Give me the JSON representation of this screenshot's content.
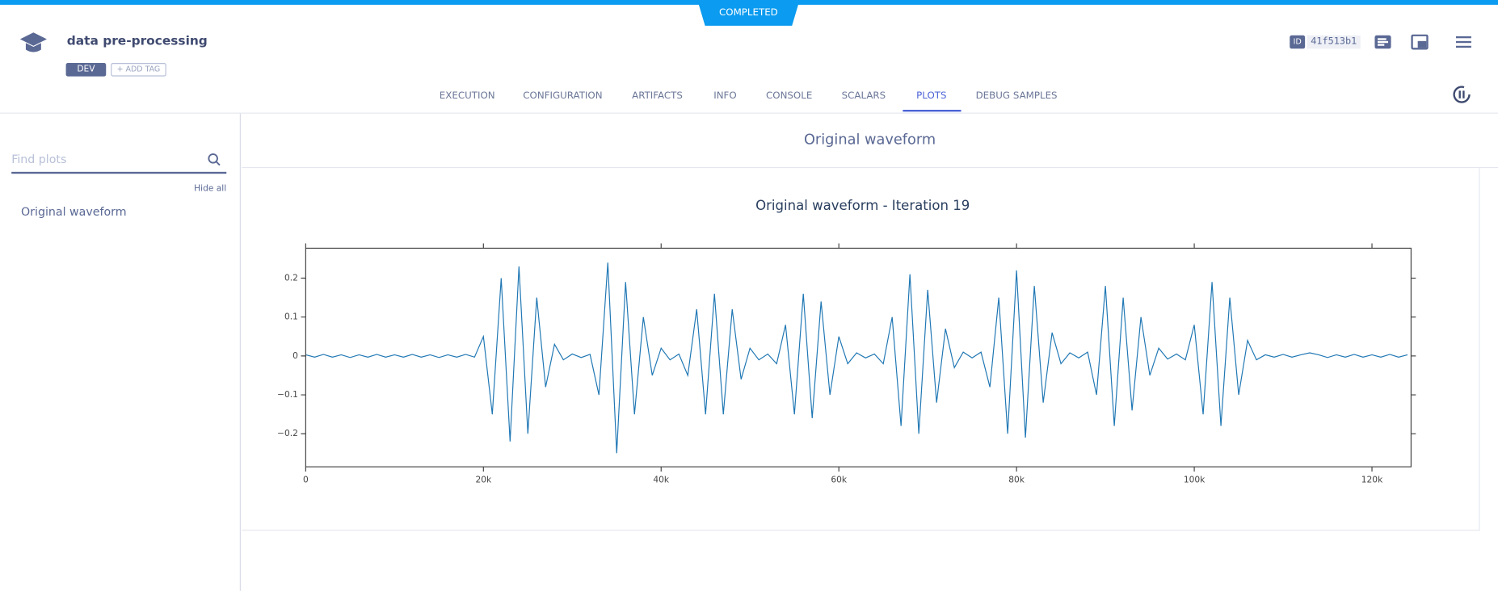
{
  "header": {
    "status": "COMPLETED",
    "title": "data pre-processing",
    "tag": "DEV",
    "add_tag": "+ ADD TAG",
    "id_label": "ID",
    "id": "41f513b1"
  },
  "tabs": [
    "EXECUTION",
    "CONFIGURATION",
    "ARTIFACTS",
    "INFO",
    "CONSOLE",
    "SCALARS",
    "PLOTS",
    "DEBUG SAMPLES"
  ],
  "active_tab": "PLOTS",
  "sidebar": {
    "search_placeholder": "Find plots",
    "hide_all": "Hide all",
    "items": [
      "Original waveform"
    ]
  },
  "panel_title": "Original waveform",
  "chart_data": {
    "type": "line",
    "title": "Original waveform - Iteration 19",
    "color": "#1f77b4",
    "x": [
      0,
      1000,
      2000,
      3000,
      4000,
      5000,
      6000,
      7000,
      8000,
      9000,
      10000,
      11000,
      12000,
      13000,
      14000,
      15000,
      16000,
      17000,
      18000,
      19000,
      20000,
      21000,
      22000,
      23000,
      24000,
      25000,
      26000,
      27000,
      28000,
      29000,
      30000,
      31000,
      32000,
      33000,
      34000,
      35000,
      36000,
      37000,
      38000,
      39000,
      40000,
      41000,
      42000,
      43000,
      44000,
      45000,
      46000,
      47000,
      48000,
      49000,
      50000,
      51000,
      52000,
      53000,
      54000,
      55000,
      56000,
      57000,
      58000,
      59000,
      60000,
      61000,
      62000,
      63000,
      64000,
      65000,
      66000,
      67000,
      68000,
      69000,
      70000,
      71000,
      72000,
      73000,
      74000,
      75000,
      76000,
      77000,
      78000,
      79000,
      80000,
      81000,
      82000,
      83000,
      84000,
      85000,
      86000,
      87000,
      88000,
      89000,
      90000,
      91000,
      92000,
      93000,
      94000,
      95000,
      96000,
      97000,
      98000,
      99000,
      100000,
      101000,
      102000,
      103000,
      104000,
      105000,
      106000,
      107000,
      108000,
      109000,
      110000,
      111000,
      112000,
      113000,
      114000,
      115000,
      116000,
      117000,
      118000,
      119000,
      120000,
      121000,
      122000,
      123000,
      124000
    ],
    "values": [
      0.003,
      -0.003,
      0.004,
      -0.003,
      0.003,
      -0.004,
      0.003,
      -0.003,
      0.004,
      -0.003,
      0.003,
      -0.003,
      0.004,
      -0.003,
      0.003,
      -0.004,
      0.003,
      -0.003,
      0.004,
      -0.003,
      0.05,
      -0.15,
      0.2,
      -0.22,
      0.23,
      -0.2,
      0.15,
      -0.08,
      0.03,
      -0.01,
      0.005,
      -0.004,
      0.004,
      -0.1,
      0.24,
      -0.25,
      0.19,
      -0.15,
      0.1,
      -0.05,
      0.02,
      -0.01,
      0.005,
      -0.05,
      0.12,
      -0.15,
      0.16,
      -0.15,
      0.12,
      -0.06,
      0.02,
      -0.01,
      0.005,
      -0.02,
      0.08,
      -0.15,
      0.16,
      -0.16,
      0.14,
      -0.1,
      0.05,
      -0.02,
      0.008,
      -0.005,
      0.005,
      -0.02,
      0.1,
      -0.18,
      0.21,
      -0.2,
      0.17,
      -0.12,
      0.07,
      -0.03,
      0.01,
      -0.005,
      0.01,
      -0.08,
      0.15,
      -0.2,
      0.22,
      -0.21,
      0.18,
      -0.12,
      0.06,
      -0.02,
      0.008,
      -0.005,
      0.01,
      -0.1,
      0.18,
      -0.18,
      0.15,
      -0.14,
      0.1,
      -0.05,
      0.02,
      -0.008,
      0.005,
      -0.01,
      0.08,
      -0.15,
      0.19,
      -0.18,
      0.15,
      -0.1,
      0.04,
      -0.01,
      0.003,
      -0.003,
      0.004,
      -0.003,
      0.003,
      0.008,
      0.003,
      -0.004,
      0.003,
      -0.003,
      0.004,
      -0.003,
      0.003,
      -0.003,
      0.004,
      -0.003,
      0.003
    ],
    "xlim": [
      0,
      124400
    ],
    "ylim": [
      -0.285,
      0.277
    ],
    "xticks": [
      0,
      {
        "value": 20000,
        "label": "20k"
      },
      {
        "value": 40000,
        "label": "40k"
      },
      {
        "value": 60000,
        "label": "60k"
      },
      {
        "value": 80000,
        "label": "80k"
      },
      {
        "value": 100000,
        "label": "100k"
      },
      {
        "value": 120000,
        "label": "120k"
      }
    ],
    "yticks": [
      {
        "value": -0.2,
        "label": "−0.2"
      },
      {
        "value": -0.1,
        "label": "−0.1"
      },
      0,
      0.1,
      0.2
    ]
  }
}
